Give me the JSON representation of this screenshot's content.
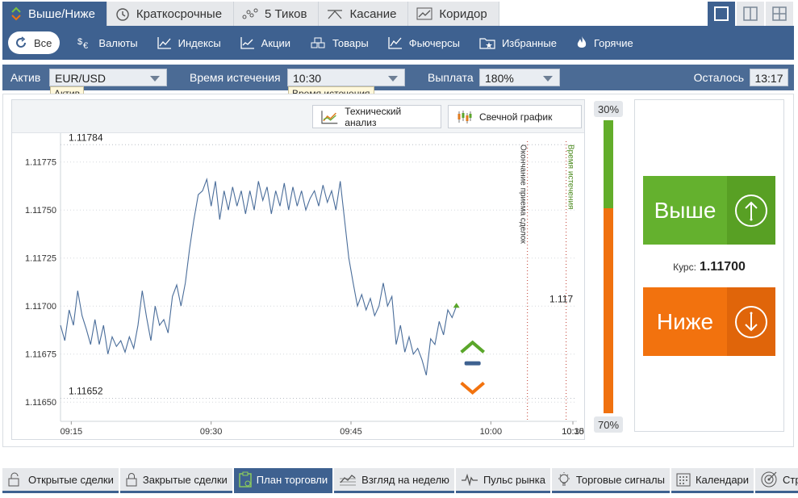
{
  "top_tabs": [
    {
      "label": "Выше/Ниже",
      "icon": "updown-icon",
      "active": true
    },
    {
      "label": "Краткосрочные",
      "icon": "clock-icon",
      "active": false
    },
    {
      "label": "5 Тиков",
      "icon": "ticks-icon",
      "active": false
    },
    {
      "label": "Касание",
      "icon": "touch-icon",
      "active": false
    },
    {
      "label": "Коридор",
      "icon": "corridor-icon",
      "active": false
    }
  ],
  "categories": [
    {
      "label": "Все",
      "icon": "refresh-icon",
      "active": true
    },
    {
      "label": "Валюты",
      "icon": "currency-icon"
    },
    {
      "label": "Индексы",
      "icon": "index-chart-icon"
    },
    {
      "label": "Акции",
      "icon": "stocks-chart-icon"
    },
    {
      "label": "Товары",
      "icon": "goods-icon"
    },
    {
      "label": "Фьючерсы",
      "icon": "futures-chart-icon"
    },
    {
      "label": "Избранные",
      "icon": "favorites-folder-icon"
    },
    {
      "label": "Горячие",
      "icon": "flame-icon"
    }
  ],
  "asset_bar": {
    "asset_label": "Актив",
    "asset_value": "EUR/USD",
    "asset_tooltip": "Актив",
    "expiry_label": "Время истечения",
    "expiry_value": "10:30",
    "expiry_tooltip": "Время истечения",
    "payout_label": "Выплата",
    "payout_value": "180%",
    "remaining_label": "Осталось",
    "remaining_value": "13:17"
  },
  "chart_toolbar": {
    "tech_label": "Технический анализ",
    "candle_label": "Свечной график"
  },
  "chart_data": {
    "type": "line",
    "x_ticks": [
      "09:15",
      "09:30",
      "09:45",
      "10:00",
      "10:15",
      "10:30"
    ],
    "y_ticks": [
      "1.11775",
      "1.11750",
      "1.11725",
      "1.11700",
      "1.11675",
      "1.11650"
    ],
    "ylim": [
      1.1164,
      1.1179
    ],
    "xlim_minutes": [
      9.5,
      33.5
    ],
    "high_label": "1.11784",
    "high_value": 1.11784,
    "low_label": "1.11652",
    "low_value": 1.11652,
    "current_label": "1.117",
    "deal_end_label": "Окончание приема сделок",
    "deal_end_minute": 31.2,
    "expiry_label": "Время истечения",
    "expiry_minute": 33.0,
    "series": [
      {
        "points": [
          [
            9.5,
            1.1169
          ],
          [
            9.7,
            1.11682
          ],
          [
            9.9,
            1.11698
          ],
          [
            10.1,
            1.1169
          ],
          [
            10.3,
            1.11708
          ],
          [
            10.5,
            1.11695
          ],
          [
            10.7,
            1.11688
          ],
          [
            10.9,
            1.1168
          ],
          [
            11.1,
            1.11693
          ],
          [
            11.3,
            1.1168
          ],
          [
            11.5,
            1.1169
          ],
          [
            11.7,
            1.11675
          ],
          [
            11.9,
            1.11684
          ],
          [
            12.1,
            1.11679
          ],
          [
            12.3,
            1.11682
          ],
          [
            12.5,
            1.11676
          ],
          [
            12.7,
            1.11684
          ],
          [
            12.9,
            1.11678
          ],
          [
            13.1,
            1.1169
          ],
          [
            13.3,
            1.11708
          ],
          [
            13.5,
            1.11694
          ],
          [
            13.7,
            1.11682
          ],
          [
            13.9,
            1.117
          ],
          [
            14.1,
            1.1169
          ],
          [
            14.3,
            1.11693
          ],
          [
            14.5,
            1.11686
          ],
          [
            14.7,
            1.11705
          ],
          [
            14.9,
            1.11711
          ],
          [
            15.1,
            1.117
          ],
          [
            15.3,
            1.11712
          ],
          [
            15.5,
            1.1173
          ],
          [
            15.7,
            1.11745
          ],
          [
            15.9,
            1.11758
          ],
          [
            16.1,
            1.1176
          ],
          [
            16.3,
            1.11766
          ],
          [
            16.5,
            1.11752
          ],
          [
            16.7,
            1.11765
          ],
          [
            16.9,
            1.11745
          ],
          [
            17.1,
            1.1176
          ],
          [
            17.3,
            1.1175
          ],
          [
            17.5,
            1.11762
          ],
          [
            17.7,
            1.11752
          ],
          [
            17.9,
            1.1176
          ],
          [
            18.1,
            1.11748
          ],
          [
            18.3,
            1.1176
          ],
          [
            18.5,
            1.1175
          ],
          [
            18.7,
            1.11765
          ],
          [
            18.9,
            1.11755
          ],
          [
            19.1,
            1.11762
          ],
          [
            19.3,
            1.11748
          ],
          [
            19.5,
            1.1176
          ],
          [
            19.7,
            1.11752
          ],
          [
            19.9,
            1.11764
          ],
          [
            20.1,
            1.1175
          ],
          [
            20.3,
            1.11762
          ],
          [
            20.5,
            1.11752
          ],
          [
            20.7,
            1.1176
          ],
          [
            20.9,
            1.1175
          ],
          [
            21.1,
            1.11756
          ],
          [
            21.3,
            1.1176
          ],
          [
            21.5,
            1.11752
          ],
          [
            21.7,
            1.11763
          ],
          [
            21.9,
            1.11754
          ],
          [
            22.1,
            1.1176
          ],
          [
            22.3,
            1.1175
          ],
          [
            22.5,
            1.11765
          ],
          [
            22.7,
            1.11745
          ],
          [
            22.9,
            1.11725
          ],
          [
            23.1,
            1.11712
          ],
          [
            23.3,
            1.117
          ],
          [
            23.5,
            1.11706
          ],
          [
            23.7,
            1.11698
          ],
          [
            23.9,
            1.11704
          ],
          [
            24.1,
            1.11695
          ],
          [
            24.3,
            1.117
          ],
          [
            24.5,
            1.11712
          ],
          [
            24.7,
            1.117
          ],
          [
            24.9,
            1.11705
          ],
          [
            25.1,
            1.1168
          ],
          [
            25.3,
            1.1169
          ],
          [
            25.5,
            1.11676
          ],
          [
            25.7,
            1.11684
          ],
          [
            25.9,
            1.11675
          ],
          [
            26.1,
            1.11678
          ],
          [
            26.3,
            1.11672
          ],
          [
            26.5,
            1.11664
          ],
          [
            26.7,
            1.11683
          ],
          [
            26.9,
            1.1168
          ],
          [
            27.1,
            1.11692
          ],
          [
            27.3,
            1.11685
          ],
          [
            27.5,
            1.11698
          ],
          [
            27.7,
            1.11694
          ],
          [
            27.9,
            1.117
          ]
        ]
      }
    ]
  },
  "percent": {
    "up": "30%",
    "down": "70%",
    "up_fraction": 0.3
  },
  "trade": {
    "up_label": "Выше",
    "down_label": "Ниже",
    "rate_label": "Курс:",
    "rate_value": "1.11700"
  },
  "bottom_tabs": [
    {
      "label": "Открытые сделки",
      "icon": "lock-open-icon",
      "active": false
    },
    {
      "label": "Закрытые сделки",
      "icon": "lock-icon",
      "active": false
    },
    {
      "label": "План торговли",
      "icon": "clipboard-icon",
      "active": true
    },
    {
      "label": "Взгляд на неделю",
      "icon": "week-chart-icon",
      "active": false
    },
    {
      "label": "Пульс рынка",
      "icon": "pulse-icon",
      "active": false
    },
    {
      "label": "Торговые сигналы",
      "icon": "lightbulb-icon",
      "active": false
    },
    {
      "label": "Календари",
      "icon": "calendar-icon",
      "active": false
    },
    {
      "label": "Стратегии",
      "icon": "target-icon",
      "active": false
    }
  ],
  "colors": {
    "primary": "#3e6190",
    "up": "#64b12e",
    "down": "#f2720e",
    "line": "#4a6d9a"
  }
}
